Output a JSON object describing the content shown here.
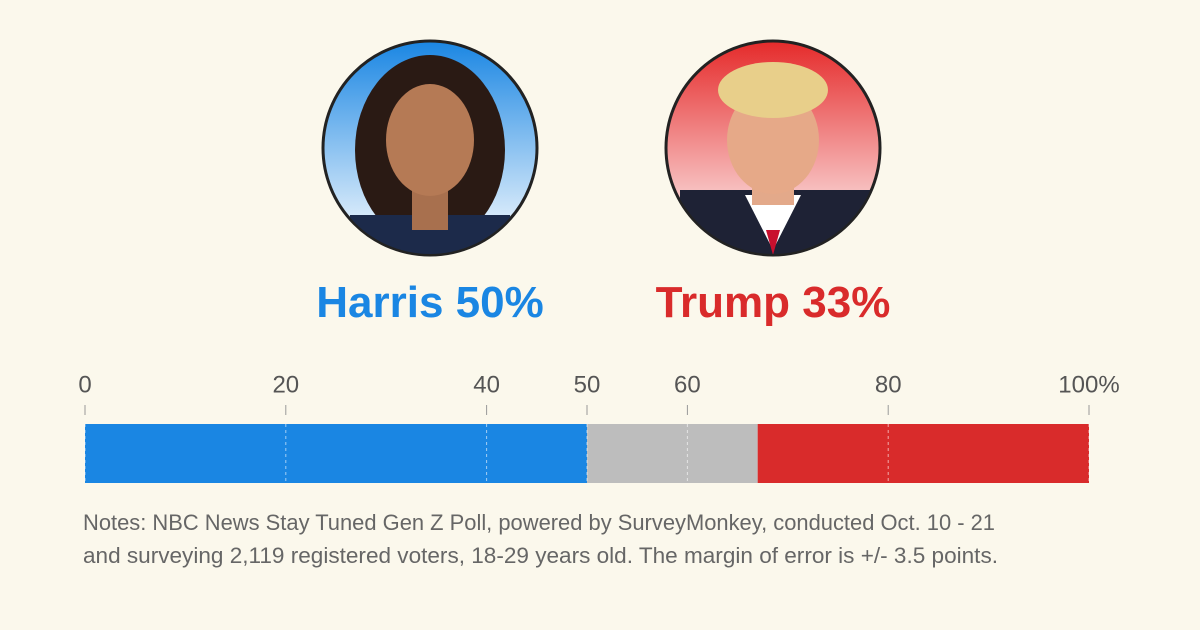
{
  "chart_data": {
    "type": "stacked-bar",
    "series": [
      {
        "name": "Harris",
        "color": "#1a86e3",
        "values": [
          50
        ],
        "value_labels": [
          "50%"
        ]
      },
      {
        "color": "#bdbdbd",
        "values": [
          17
        ]
      },
      {
        "name": "Trump",
        "color": "#d92b2b",
        "values": [
          33
        ],
        "value_labels": [
          "33%"
        ]
      }
    ],
    "xlim": [
      0,
      100
    ],
    "xticks": [
      0,
      20,
      40,
      50,
      60,
      80,
      {
        "value": 100,
        "label": "100%"
      }
    ],
    "grid": true,
    "notes": [
      "Notes: NBC News Stay Tuned Gen Z Poll, powered by SurveyMonkey, conducted Oct. 10 - 21",
      "and surveying 2,119 registered voters, 18-29 years old. The margin of error is +/- 3.5 points."
    ]
  }
}
